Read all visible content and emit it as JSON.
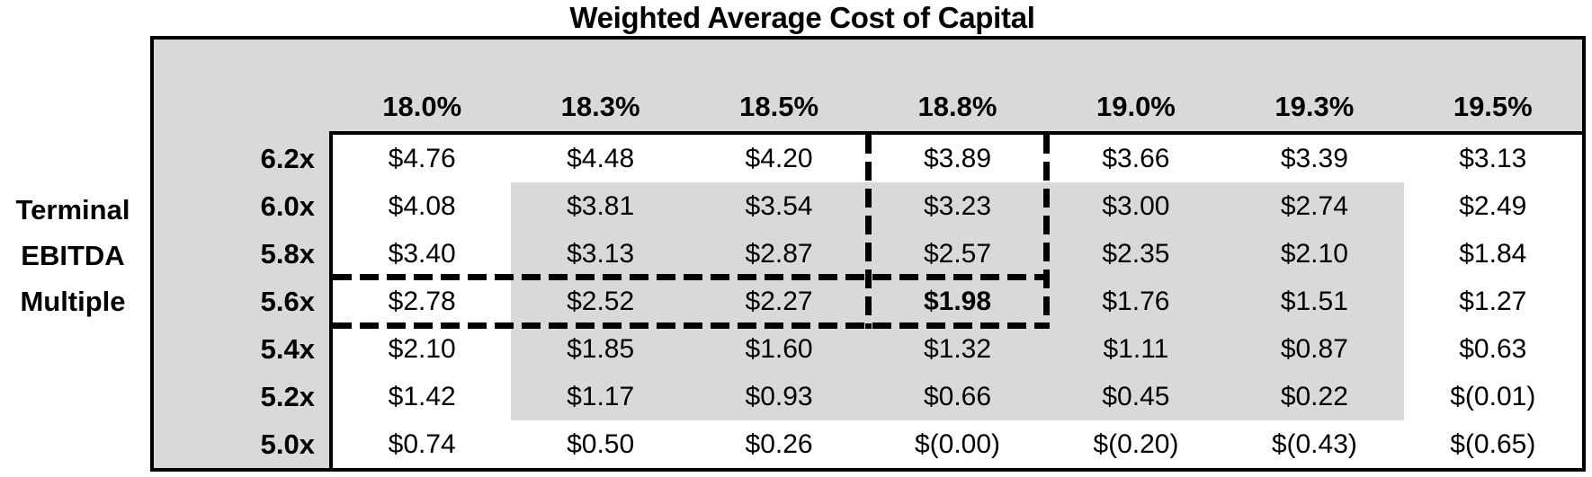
{
  "title": "Weighted Average Cost of Capital",
  "y_axis": {
    "label_lines": [
      "Terminal",
      "EBITDA",
      "Multiple"
    ]
  },
  "table": {
    "columns": [
      "18.0%",
      "18.3%",
      "18.5%",
      "18.8%",
      "19.0%",
      "19.3%",
      "19.5%"
    ],
    "rows": [
      "6.2x",
      "6.0x",
      "5.8x",
      "5.6x",
      "5.4x",
      "5.2x",
      "5.0x"
    ],
    "display": [
      [
        "$4.76",
        "$4.48",
        "$4.20",
        "$3.89",
        "$3.66",
        "$3.39",
        "$3.13"
      ],
      [
        "$4.08",
        "$3.81",
        "$3.54",
        "$3.23",
        "$3.00",
        "$2.74",
        "$2.49"
      ],
      [
        "$3.40",
        "$3.13",
        "$2.87",
        "$2.57",
        "$2.35",
        "$2.10",
        "$1.84"
      ],
      [
        "$2.78",
        "$2.52",
        "$2.27",
        "$1.98",
        "$1.76",
        "$1.51",
        "$1.27"
      ],
      [
        "$2.10",
        "$1.85",
        "$1.60",
        "$1.32",
        "$1.11",
        "$0.87",
        "$0.63"
      ],
      [
        "$1.42",
        "$1.17",
        "$0.93",
        "$0.66",
        "$0.45",
        "$0.22",
        "$(0.01)"
      ],
      [
        "$0.74",
        "$0.50",
        "$0.26",
        "$(0.00)",
        "$(0.20)",
        "$(0.43)",
        "$(0.65)"
      ]
    ],
    "highlighted_cell": {
      "row": "5.6x",
      "column": "18.8%",
      "value": "$1.98"
    }
  },
  "colors": {
    "shade": "#d9d9d9",
    "line": "#000000",
    "text": "#000000",
    "background": "#ffffff"
  },
  "chart_data": {
    "type": "table",
    "title": "Weighted Average Cost of Capital",
    "row_axis_label": "Terminal EBITDA Multiple",
    "columns_wacc": [
      "18.0%",
      "18.3%",
      "18.5%",
      "18.8%",
      "19.0%",
      "19.3%",
      "19.5%"
    ],
    "rows_terminal_ebitda_multiple": [
      "6.2x",
      "6.0x",
      "5.8x",
      "5.6x",
      "5.4x",
      "5.2x",
      "5.0x"
    ],
    "values": [
      [
        4.76,
        4.48,
        4.2,
        3.89,
        3.66,
        3.39,
        3.13
      ],
      [
        4.08,
        3.81,
        3.54,
        3.23,
        3.0,
        2.74,
        2.49
      ],
      [
        3.4,
        3.13,
        2.87,
        2.57,
        2.35,
        2.1,
        1.84
      ],
      [
        2.78,
        2.52,
        2.27,
        1.98,
        1.76,
        1.51,
        1.27
      ],
      [
        2.1,
        1.85,
        1.6,
        1.32,
        1.11,
        0.87,
        0.63
      ],
      [
        1.42,
        1.17,
        0.93,
        0.66,
        0.45,
        0.22,
        -0.01
      ],
      [
        0.74,
        0.5,
        0.26,
        -0.0,
        -0.2,
        -0.43,
        -0.65
      ]
    ],
    "highlighted_cell": {
      "row": "5.6x",
      "column": "18.8%",
      "value": 1.98,
      "marker": "dashed-crosshair"
    },
    "shaded_region": {
      "rows": [
        "6.0x",
        "5.2x"
      ],
      "columns": [
        "18.3%",
        "19.3%"
      ]
    },
    "layout_hints": {
      "grid": "off",
      "negatives_in_parentheses": true
    }
  }
}
